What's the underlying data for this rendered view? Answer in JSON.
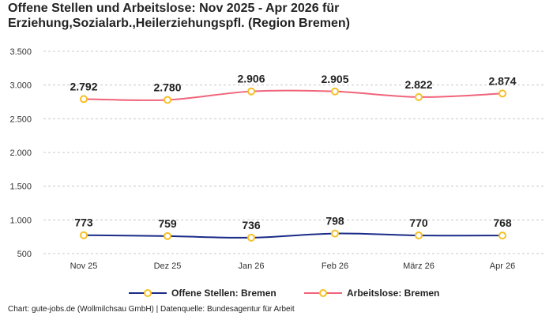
{
  "title_line1": "Offene Stellen und Arbeitslose: Nov 2025 - Apr 2026 für",
  "title_line2": "Erziehung,Sozialarb.,Heilerziehungspfl. (Region Bremen)",
  "footer": "Chart: gute-jobs.de (Wollmilchsau GmbH) | Datenquelle: Bundesagentur für Arbeit",
  "chart_data": {
    "type": "line",
    "categories": [
      "Nov 25",
      "Dez 25",
      "Jan 26",
      "Feb 26",
      "März 26",
      "Apr 26"
    ],
    "y_ticks": [
      "3.500",
      "3.000",
      "2.500",
      "2.000",
      "1.500",
      "1.000",
      "500"
    ],
    "y_tick_values": [
      3500,
      3000,
      2500,
      2000,
      1500,
      1000,
      500
    ],
    "ylim": [
      500,
      3500
    ],
    "grid": true,
    "legend_position": "bottom",
    "marker_color": "#f5c028",
    "series": [
      {
        "name": "Offene Stellen: Bremen",
        "color": "#1a2b87",
        "values": [
          773,
          759,
          736,
          798,
          770,
          768
        ],
        "labels": [
          "773",
          "759",
          "736",
          "798",
          "770",
          "768"
        ]
      },
      {
        "name": "Arbeitslose: Bremen",
        "color": "#f0647a",
        "values": [
          2792,
          2780,
          2906,
          2905,
          2822,
          2874
        ],
        "labels": [
          "2.792",
          "2.780",
          "2.906",
          "2.905",
          "2.822",
          "2.874"
        ]
      }
    ]
  }
}
